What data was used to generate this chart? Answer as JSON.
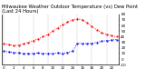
{
  "title": "Milwaukee Weather Outdoor Temperature (vs) Dew Point (Last 24 Hours)",
  "background_color": "#ffffff",
  "plot_bg_color": "#ffffff",
  "grid_color": "#888888",
  "temp_color": "#ff0000",
  "dew_color": "#0000ff",
  "temp_values": [
    28,
    26,
    24,
    25,
    27,
    30,
    33,
    36,
    40,
    44,
    50,
    56,
    61,
    66,
    70,
    72,
    70,
    65,
    58,
    52,
    47,
    44,
    42,
    40
  ],
  "dew_values": [
    14,
    13,
    12,
    11,
    10,
    10,
    10,
    11,
    10,
    10,
    10,
    11,
    10,
    12,
    14,
    28,
    28,
    28,
    28,
    30,
    32,
    33,
    34,
    35
  ],
  "ylim_min": -10,
  "ylim_max": 80,
  "yticks": [
    -10,
    0,
    10,
    20,
    30,
    40,
    50,
    60,
    70,
    80
  ],
  "ytick_labels": [
    "-10",
    "0",
    "10",
    "20",
    "30",
    "40",
    "50",
    "60",
    "70",
    "80"
  ],
  "n_points": 24,
  "title_fontsize": 3.8,
  "tick_fontsize": 3.0,
  "linewidth": 0.7,
  "markersize": 1.2,
  "grid_linewidth": 0.3,
  "grid_interval": 3
}
